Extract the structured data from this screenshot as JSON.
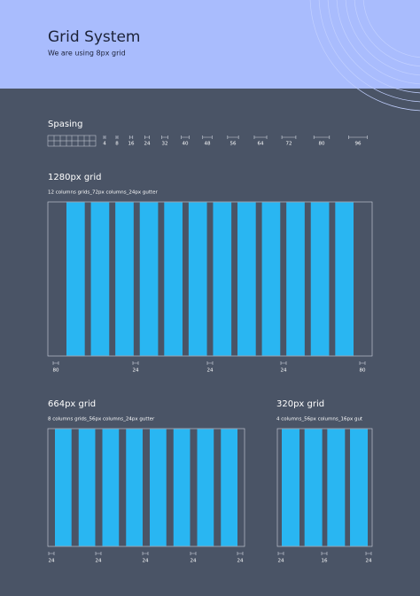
{
  "header": {
    "title": "Grid System",
    "subtitle": "We are using 8px grid"
  },
  "spacing": {
    "title": "Spasing",
    "labels": [
      4,
      8,
      16,
      24,
      32,
      40,
      48,
      56,
      64,
      72,
      80,
      96
    ]
  },
  "grids": [
    {
      "title": "1280px grid",
      "description": "12 columns grids_72px columns_24px gutter",
      "measures": [
        80,
        24,
        24,
        24,
        80
      ]
    },
    {
      "title": "664px grid",
      "description": "8 columns grids_56px columns_24px gutter",
      "measures": [
        24,
        24,
        24,
        24,
        24
      ]
    },
    {
      "title": "320px grid",
      "description": "4 columns_56px columns_16px gut",
      "measures": [
        24,
        16,
        24
      ]
    }
  ]
}
